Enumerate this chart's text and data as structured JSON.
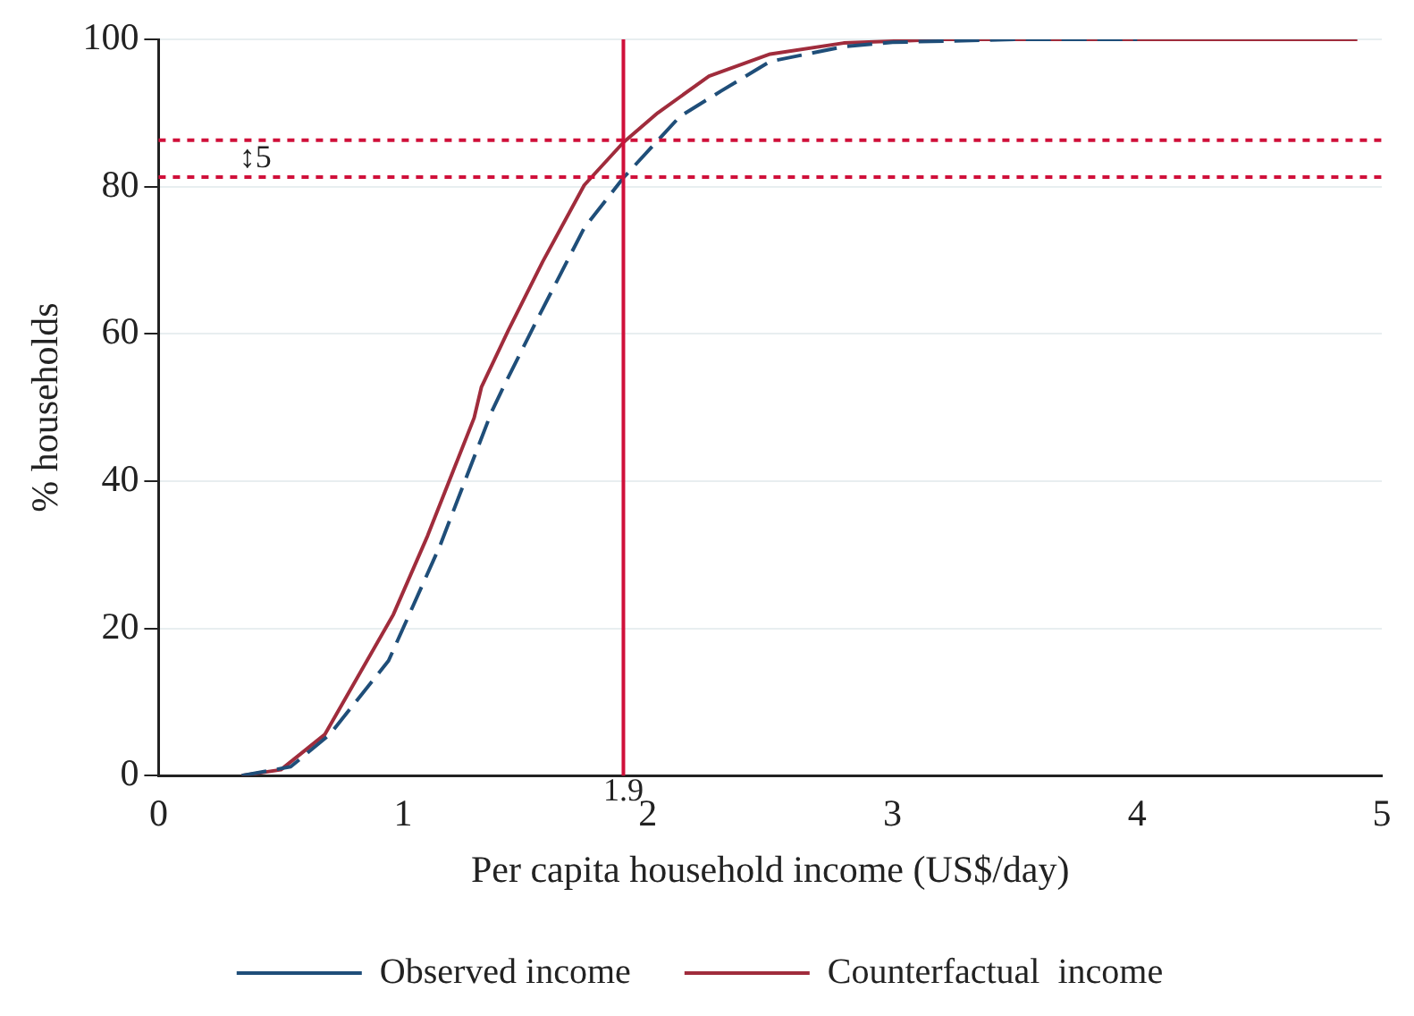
{
  "chart_data": {
    "type": "line",
    "xlabel": "Per capita household income (US$/day)",
    "ylabel": "% households",
    "xlim": [
      0,
      5
    ],
    "xticks": [
      0,
      1,
      2,
      3,
      4,
      5
    ],
    "ylim": [
      0,
      100
    ],
    "yticks": [
      0,
      20,
      40,
      60,
      80,
      100
    ],
    "grid": "y",
    "legend": "bottom",
    "marker": "none",
    "series": [
      {
        "name": "Observed income",
        "color": "#1f4e79",
        "line_style": "dashed",
        "x": [
          0.34,
          0.54,
          0.7,
          0.94,
          1.15,
          1.36,
          1.41,
          1.55,
          1.74,
          1.9,
          2.13,
          2.3,
          2.5,
          2.8,
          3.0,
          3.5,
          4.0
        ],
        "values": [
          0,
          1.2,
          5.6,
          15.6,
          31.2,
          49.3,
          52.8,
          62.1,
          74.4,
          81.2,
          89.5,
          93,
          97,
          99,
          99.6,
          100,
          100
        ]
      },
      {
        "name": "Counterfactual  income",
        "color": "#a02c3c",
        "line_style": "solid",
        "x": [
          0.34,
          0.5,
          0.68,
          0.96,
          1.1,
          1.29,
          1.32,
          1.43,
          1.57,
          1.74,
          1.9,
          2.04,
          2.25,
          2.5,
          2.8,
          3.2,
          4.9
        ],
        "values": [
          0,
          0.8,
          5.6,
          21.9,
          32.6,
          48.6,
          52.8,
          60.5,
          69.8,
          80.2,
          86,
          90,
          95,
          98,
          99.5,
          100,
          100
        ]
      }
    ],
    "ref_lines": [
      {
        "axis": "x",
        "value": 1.9,
        "label": "1.9",
        "color": "#d0103a",
        "line_style": "solid"
      },
      {
        "axis": "y",
        "value": 86.3,
        "color": "#d0103a",
        "line_style": "dotted"
      },
      {
        "axis": "y",
        "value": 81.3,
        "color": "#d0103a",
        "line_style": "dotted"
      }
    ],
    "annotations": [
      "↕5"
    ]
  }
}
